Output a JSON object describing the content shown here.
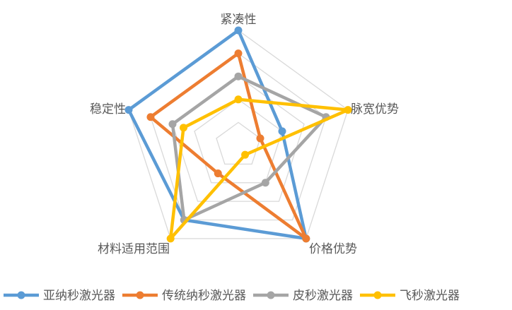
{
  "chart_data": {
    "type": "radar",
    "title": "",
    "axes": [
      "紧凑性",
      "脉宽优势",
      "价格优势",
      "材料适用范围",
      "稳定性"
    ],
    "rmin": 0,
    "rmax": 5,
    "ticks": [
      1,
      2,
      3,
      4,
      5
    ],
    "grid": true,
    "legend_position": "bottom",
    "series": [
      {
        "name": "亚纳秒激光器",
        "color": "#5B9BD5",
        "values": [
          5,
          2,
          5,
          4,
          5
        ]
      },
      {
        "name": "传统纳秒激光器",
        "color": "#ED7D31",
        "values": [
          4,
          1,
          5,
          1.5,
          4
        ]
      },
      {
        "name": "皮秒激光器",
        "color": "#A5A5A5",
        "values": [
          3,
          4,
          2,
          4,
          3
        ]
      },
      {
        "name": "飞秒激光器",
        "color": "#FFC000",
        "values": [
          2,
          5,
          0.5,
          5,
          2.5
        ]
      }
    ]
  }
}
